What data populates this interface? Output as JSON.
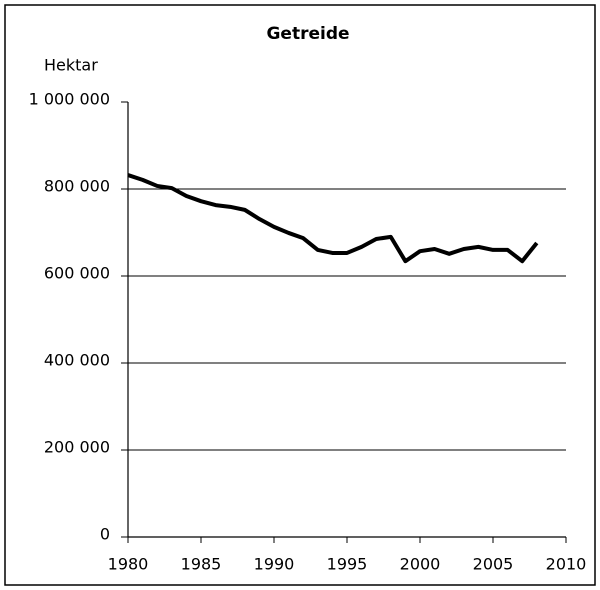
{
  "chart_data": {
    "type": "line",
    "title": "Getreide",
    "y_label": "Hektar",
    "x": [
      1980,
      1981,
      1982,
      1983,
      1984,
      1985,
      1986,
      1987,
      1988,
      1989,
      1990,
      1991,
      1992,
      1993,
      1994,
      1995,
      1996,
      1997,
      1998,
      1999,
      2000,
      2001,
      2002,
      2003,
      2004,
      2005,
      2006,
      2007,
      2008
    ],
    "series": [
      {
        "name": "Getreide",
        "color": "#000000",
        "values": [
          832000,
          821000,
          807000,
          802000,
          784000,
          772000,
          763000,
          759000,
          752000,
          731000,
          713000,
          699000,
          687000,
          660000,
          653000,
          653000,
          667000,
          685000,
          690000,
          634000,
          657000,
          662000,
          651000,
          662000,
          667000,
          660000,
          660000,
          634000,
          676000
        ]
      }
    ],
    "xlim": [
      1980,
      2010
    ],
    "xticks": [
      1980,
      1985,
      1990,
      1995,
      2000,
      2005,
      2010
    ],
    "ylim": [
      0,
      1000000
    ],
    "yticks": [
      0,
      {
        "value": 200000,
        "label": "200 000"
      },
      {
        "value": 400000,
        "label": "400 000"
      },
      {
        "value": 600000,
        "label": "600 000"
      },
      {
        "value": 800000,
        "label": "800 000"
      },
      {
        "value": 1000000,
        "label": "1 000 000"
      }
    ],
    "grid": true
  }
}
